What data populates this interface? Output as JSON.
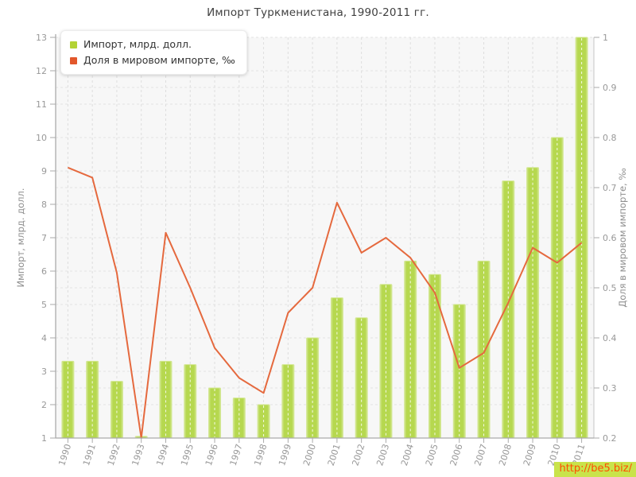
{
  "title": "Импорт Туркменистана, 1990-2011 гг.",
  "watermark": "http://be5.biz/",
  "legend": {
    "position": "top-left",
    "items": [
      {
        "label": "Импорт, млрд. долл.",
        "color": "#b3d335"
      },
      {
        "label": "Доля в мировом импорте, ‰",
        "color": "#e2572b"
      }
    ]
  },
  "colors": {
    "bar": "#b6d84f",
    "bar_edge": "#d3e793",
    "line": "#e5693e",
    "plot_bg": "#f7f7f7",
    "grid": "#e3e3e3",
    "grid_on_bar": "#ffffff",
    "axis": "#aaaaaa",
    "tick_text": "#999999",
    "axis_label_text": "#8f8f8f",
    "watermark_bg": "#c9e34b",
    "watermark_text": "#ff4e00"
  },
  "chart_data": {
    "type": "bar",
    "title": "Импорт Туркменистана, 1990-2011 гг.",
    "categories": [
      "1990",
      "1991",
      "1992",
      "1993",
      "1994",
      "1995",
      "1996",
      "1997",
      "1998",
      "1999",
      "2000",
      "2001",
      "2002",
      "2003",
      "2004",
      "2005",
      "2006",
      "2007",
      "2008",
      "2009",
      "2010",
      "2011"
    ],
    "series": [
      {
        "name": "Импорт, млрд. долл.",
        "type": "bar",
        "axis": "left",
        "values": [
          3.3,
          3.3,
          2.7,
          1.05,
          3.3,
          3.2,
          2.5,
          2.2,
          2.0,
          3.2,
          4.0,
          5.2,
          4.6,
          5.6,
          6.3,
          5.9,
          5.0,
          6.3,
          8.7,
          9.1,
          10.0,
          13.0
        ]
      },
      {
        "name": "Доля в мировом импорте, ‰",
        "type": "line",
        "axis": "right",
        "values": [
          0.74,
          0.72,
          0.53,
          0.2,
          0.61,
          0.5,
          0.38,
          0.32,
          0.29,
          0.45,
          0.5,
          0.67,
          0.57,
          0.6,
          0.56,
          0.49,
          0.34,
          0.37,
          0.47,
          0.58,
          0.55,
          0.59
        ]
      }
    ],
    "left_axis": {
      "label": "Импорт, млрд. долл.",
      "min": 1,
      "max": 13,
      "tick_step": 1
    },
    "right_axis": {
      "label": "Доля в мировом импорте, ‰",
      "min": 0.2,
      "max": 1.0,
      "tick_step": 0.1
    },
    "xlabel": "",
    "grid": true,
    "legend_position": "top-left"
  }
}
